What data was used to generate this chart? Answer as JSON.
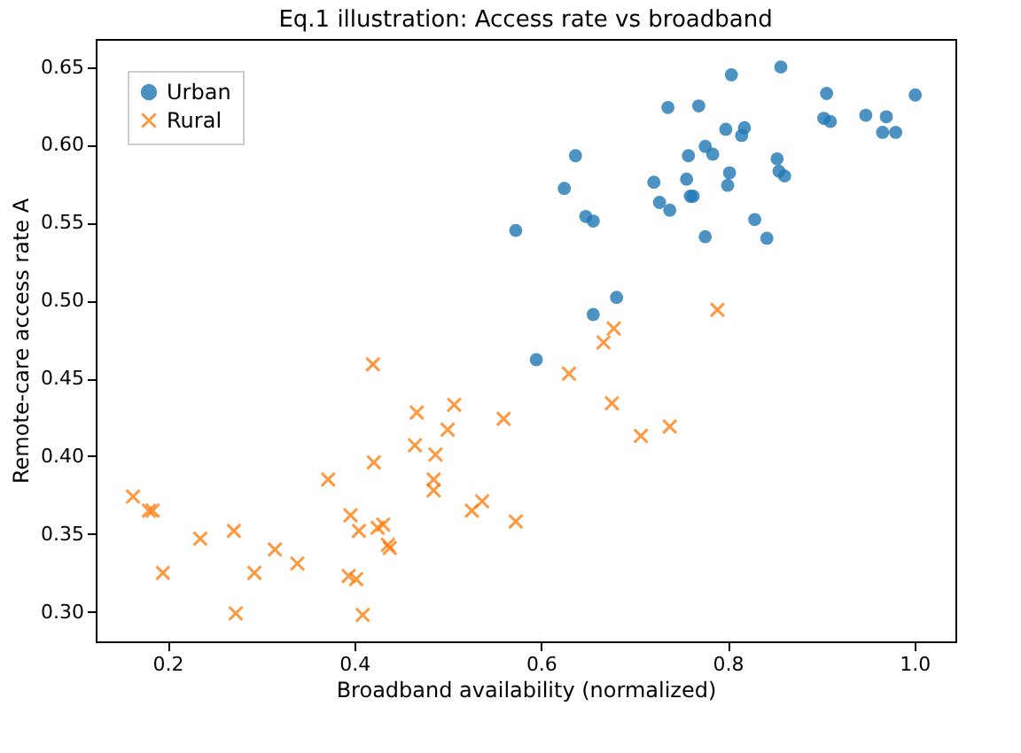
{
  "chart_data": {
    "type": "scatter",
    "title": "Eq.1 illustration: Access rate vs broadband",
    "xlabel": "Broadband availability (normalized)",
    "ylabel": "Remote-care access rate A",
    "xlim": [
      0.123,
      1.044
    ],
    "ylim": [
      0.281,
      0.668
    ],
    "xticks": [
      0.2,
      0.4,
      0.6,
      0.8,
      {
        "value": 1.0,
        "label": "1.0"
      }
    ],
    "yticks": [
      {
        "value": 0.3,
        "label": "0.30"
      },
      0.35,
      {
        "value": 0.4,
        "label": "0.40"
      },
      0.45,
      {
        "value": 0.5,
        "label": "0.50"
      },
      0.55,
      {
        "value": 0.6,
        "label": "0.60"
      },
      0.65
    ],
    "grid": false,
    "legend": "top left",
    "series": [
      {
        "name": "Urban",
        "color": "#1f77b4",
        "marker": "circle",
        "x": [
          0.573,
          0.595,
          0.625,
          0.637,
          0.648,
          0.656,
          0.656,
          0.681,
          0.721,
          0.727,
          0.738,
          0.736,
          0.769,
          0.756,
          0.758,
          0.76,
          0.763,
          0.776,
          0.784,
          0.776,
          0.798,
          0.804,
          0.818,
          0.815,
          0.802,
          0.8,
          0.829,
          0.842,
          0.853,
          0.857,
          0.855,
          0.861,
          0.906,
          0.903,
          0.91,
          0.948,
          0.97,
          0.966,
          0.98,
          1.001
        ],
        "values": [
          0.545,
          0.462,
          0.572,
          0.593,
          0.554,
          0.551,
          0.491,
          0.502,
          0.576,
          0.563,
          0.558,
          0.624,
          0.625,
          0.578,
          0.593,
          0.567,
          0.567,
          0.599,
          0.594,
          0.541,
          0.61,
          0.645,
          0.611,
          0.606,
          0.582,
          0.574,
          0.552,
          0.54,
          0.591,
          0.65,
          0.583,
          0.58,
          0.633,
          0.617,
          0.615,
          0.619,
          0.618,
          0.608,
          0.608,
          0.632
        ]
      },
      {
        "name": "Rural",
        "color": "#ff7f0e",
        "marker": "cross",
        "x": [
          0.163,
          0.18,
          0.184,
          0.195,
          0.235,
          0.271,
          0.273,
          0.293,
          0.315,
          0.339,
          0.372,
          0.396,
          0.394,
          0.402,
          0.405,
          0.409,
          0.42,
          0.421,
          0.425,
          0.431,
          0.436,
          0.438,
          0.467,
          0.465,
          0.487,
          0.485,
          0.485,
          0.5,
          0.507,
          0.526,
          0.537,
          0.56,
          0.573,
          0.789,
          0.678,
          0.667,
          0.63,
          0.676,
          0.707,
          0.738
        ],
        "values": [
          0.374,
          0.365,
          0.365,
          0.325,
          0.347,
          0.352,
          0.299,
          0.325,
          0.34,
          0.331,
          0.385,
          0.362,
          0.323,
          0.321,
          0.352,
          0.298,
          0.459,
          0.396,
          0.354,
          0.356,
          0.343,
          0.341,
          0.428,
          0.407,
          0.401,
          0.385,
          0.378,
          0.417,
          0.433,
          0.365,
          0.371,
          0.424,
          0.358,
          0.494,
          0.482,
          0.473,
          0.453,
          0.434,
          0.413,
          0.419
        ]
      }
    ]
  }
}
